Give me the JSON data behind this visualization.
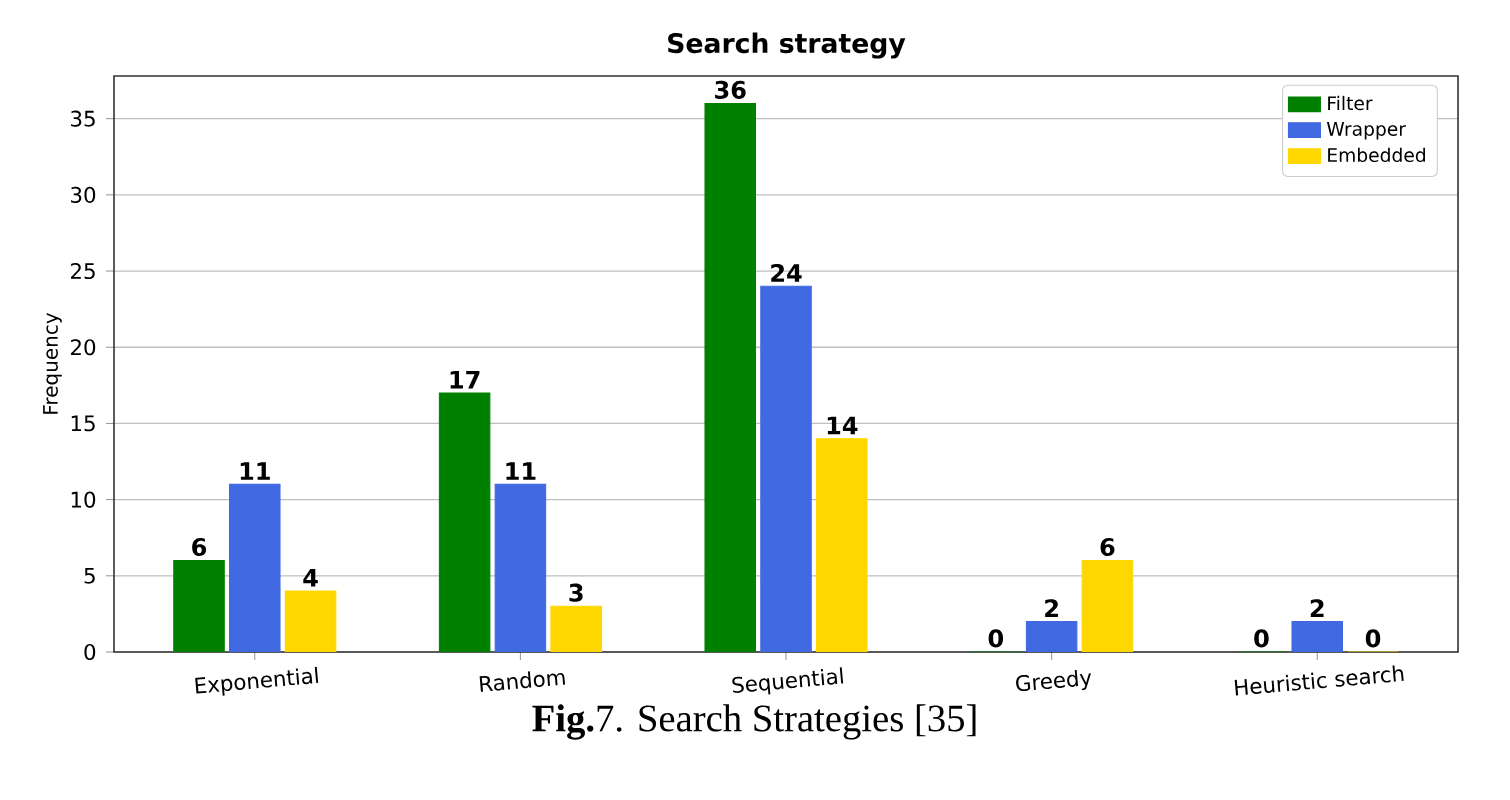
{
  "chart_data": {
    "type": "bar",
    "title": "Search strategy",
    "ylabel": "Frequency",
    "annotations": [
      "**Fig.**7. Search Strategies [35]"
    ],
    "categories": [
      "Exponential",
      "Random",
      "Sequential",
      "Greedy",
      "Heuristic search"
    ],
    "series": [
      {
        "name": "Filter",
        "color": "#008000",
        "values": [
          6,
          17,
          36,
          0,
          0
        ]
      },
      {
        "name": "Wrapper",
        "color": "#4169e1",
        "values": [
          11,
          11,
          24,
          2,
          2
        ]
      },
      {
        "name": "Embedded",
        "color": "#ffd700",
        "values": [
          4,
          3,
          14,
          6,
          0
        ]
      }
    ],
    "ylim": [
      0,
      37.8
    ],
    "yticks": [
      0,
      5,
      10,
      15,
      20,
      25,
      30,
      35
    ],
    "grid": "y",
    "legend": "top right",
    "data_labels": true
  }
}
